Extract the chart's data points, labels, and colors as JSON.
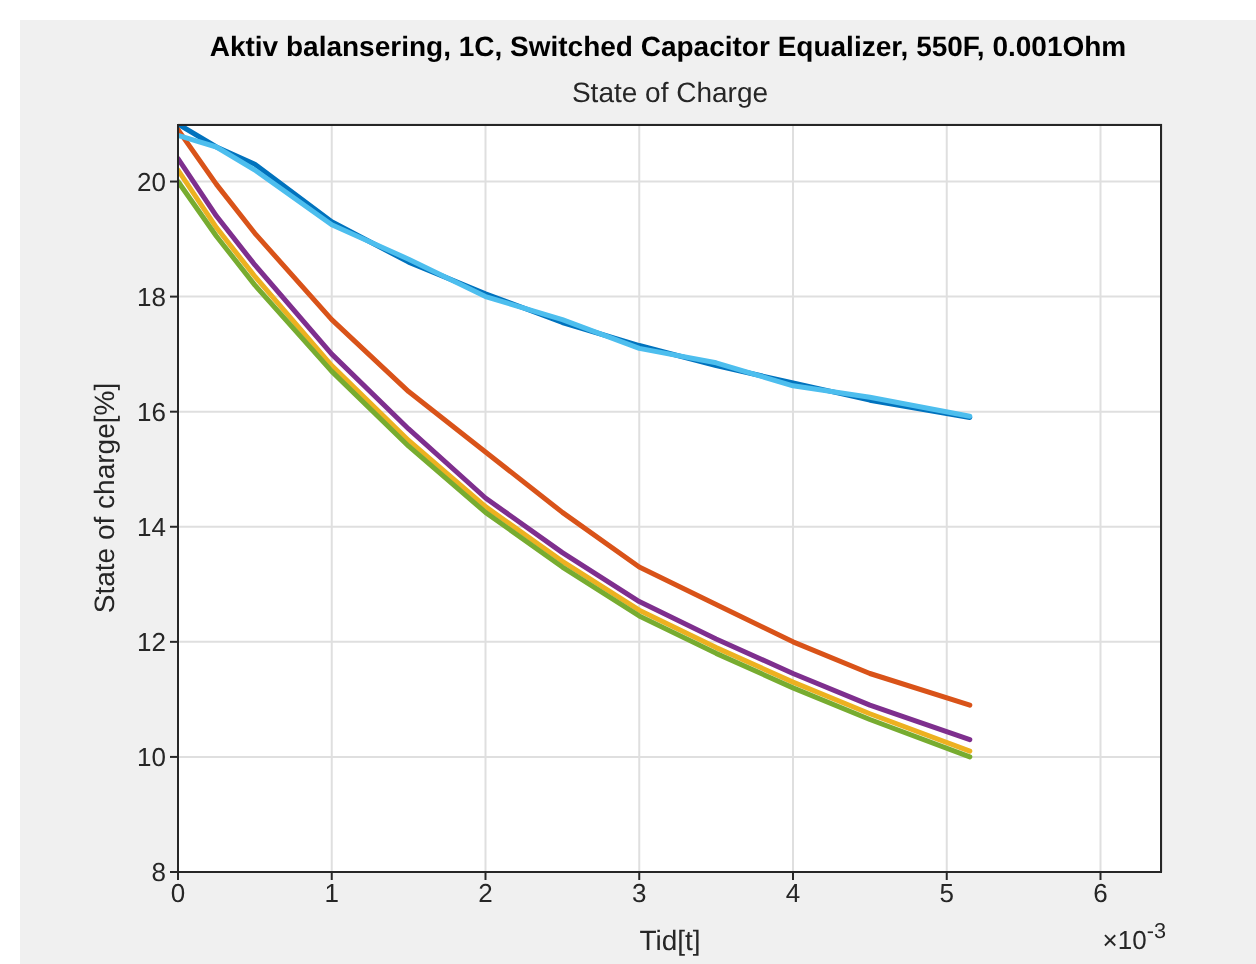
{
  "chart_data": {
    "type": "line",
    "title": "Aktiv balansering, 1C, Switched Capacitor Equalizer, 550F, 0.001Ohm",
    "subtitle": "State of Charge",
    "xlabel": "Tid[t]",
    "ylabel": "State of charge[%]",
    "annotations": [
      "×10$^{-3}$"
    ],
    "x": [
      0,
      0.25,
      0.5,
      1,
      1.5,
      2,
      2.5,
      3,
      3.5,
      4,
      4.5,
      5.15
    ],
    "series": [
      {
        "color": "#0072bd",
        "values": [
          21.0,
          20.6,
          20.3,
          19.3,
          18.6,
          18.05,
          17.55,
          17.15,
          16.8,
          16.5,
          16.2,
          15.9
        ]
      },
      {
        "color": "#d95319",
        "values": [
          20.9,
          19.95,
          19.1,
          17.6,
          16.35,
          15.3,
          14.25,
          13.3,
          12.65,
          12.0,
          11.45,
          10.9
        ]
      },
      {
        "color": "#edb120",
        "values": [
          20.2,
          19.2,
          18.35,
          16.8,
          15.5,
          14.35,
          13.4,
          12.55,
          11.9,
          11.3,
          10.75,
          10.1
        ]
      },
      {
        "color": "#7e2f8e",
        "values": [
          20.4,
          19.4,
          18.55,
          17.0,
          15.7,
          14.5,
          13.55,
          12.7,
          12.05,
          11.45,
          10.9,
          10.3
        ]
      },
      {
        "color": "#77ac30",
        "values": [
          20.0,
          19.05,
          18.2,
          16.7,
          15.4,
          14.25,
          13.3,
          12.45,
          11.8,
          11.2,
          10.65,
          10.0
        ]
      },
      {
        "color": "#4dbeee",
        "values": [
          20.8,
          20.6,
          20.2,
          19.25,
          18.65,
          18.0,
          17.6,
          17.1,
          16.85,
          16.45,
          16.25,
          15.92
        ]
      }
    ],
    "xlim": [
      0,
      6.4
    ],
    "xticks": [
      0,
      1,
      2,
      3,
      4,
      5,
      6
    ],
    "ylim": [
      8,
      21
    ],
    "yticks": [
      8,
      10,
      12,
      14,
      16,
      18,
      20
    ],
    "grid": true
  }
}
